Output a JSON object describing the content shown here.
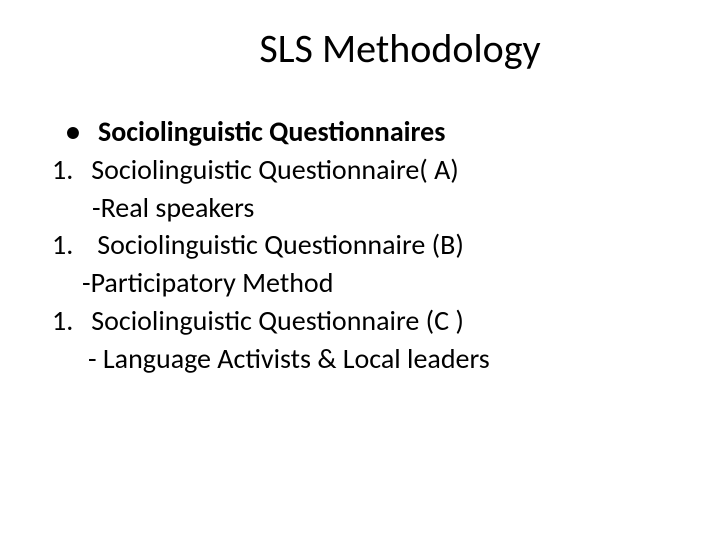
{
  "slide": {
    "title": "SLS Methodology",
    "bullet_marker": "•",
    "bullet_text": "Sociolinguistic Questionnaires",
    "item1_num": "1.",
    "item1_text": "Sociolinguistic Questionnaire( A)",
    "item1_sub": "-Real speakers",
    "item2_num": "1.",
    "item2_text": "Sociolinguistic Questionnaire (B)",
    "item2_sub": "-Participatory Method",
    "item3_num": "1.",
    "item3_text": "Sociolinguistic Questionnaire (C )",
    "item3_sub": "- Language Activists & Local leaders"
  },
  "style": {
    "title_fontsize": 40,
    "body_fontsize": 28,
    "background_color": "#ffffff",
    "text_color": "#000000",
    "font_family": "Calibri"
  }
}
